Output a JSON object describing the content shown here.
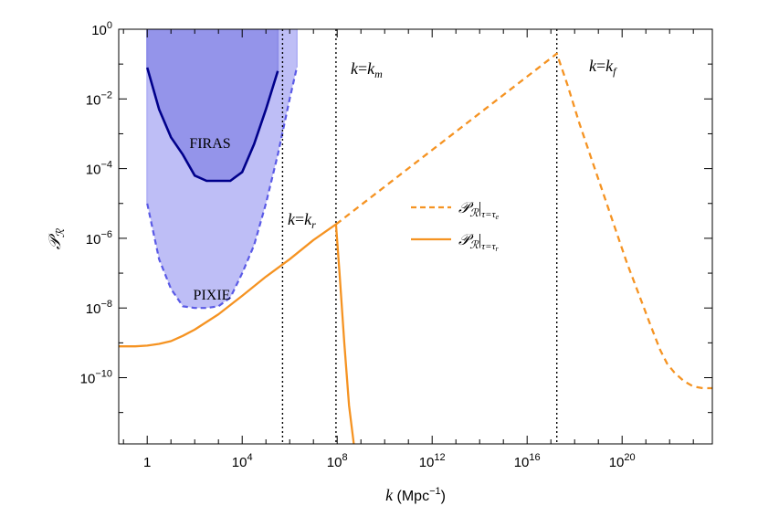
{
  "chart_data": {
    "type": "line",
    "xlabel": "k (Mpc⁻¹)",
    "ylabel": "𝒫ℛ",
    "xscale": "log",
    "yscale": "log",
    "xlim_log10": [
      -1.2,
      23.8
    ],
    "ylim_log10": [
      -11.9,
      0
    ],
    "grid": false,
    "legend_position": "center-right",
    "x_tick_labels": [
      {
        "log10": 0,
        "label": "1"
      },
      {
        "log10": 4,
        "label": "10^4"
      },
      {
        "log10": 8,
        "label": "10^8"
      },
      {
        "log10": 12,
        "label": "10^12"
      },
      {
        "log10": 16,
        "label": "10^16"
      },
      {
        "log10": 20,
        "label": "10^20"
      }
    ],
    "y_tick_labels": [
      {
        "log10": 0,
        "label": "10^0"
      },
      {
        "log10": -2,
        "label": "10^-2"
      },
      {
        "log10": -4,
        "label": "10^-4"
      },
      {
        "log10": -6,
        "label": "10^-6"
      },
      {
        "log10": -8,
        "label": "10^-8"
      },
      {
        "log10": -10,
        "label": "10^-10"
      }
    ],
    "vertical_lines": [
      {
        "log10_k": 5.7,
        "label": "k=k_r"
      },
      {
        "log10_k": 7.95,
        "label": "k=k_m"
      },
      {
        "log10_k": 17.25,
        "label": "k=k_f"
      }
    ],
    "regions": [
      {
        "name": "PIXIE",
        "color": "#b3b3f5",
        "edge_color": "#5a5ae6",
        "x_log10": [
          0,
          0.5,
          1,
          1.5,
          2,
          2.5,
          3,
          3.5,
          4,
          4.5,
          5,
          5.5,
          6,
          6.3
        ],
        "y_log10": [
          -5.0,
          -6.6,
          -7.45,
          -7.95,
          -8.0,
          -8.0,
          -7.95,
          -7.7,
          -7.0,
          -6.2,
          -5.0,
          -3.6,
          -2.0,
          -1.1
        ]
      },
      {
        "name": "FIRAS",
        "color": "#8d8de8",
        "edge_color": "#00008b",
        "x_log10": [
          0,
          0.5,
          1,
          1.5,
          2,
          2.5,
          3,
          3.5,
          4,
          4.5,
          5,
          5.5
        ],
        "y_log10": [
          -1.1,
          -2.3,
          -3.1,
          -3.6,
          -4.2,
          -4.35,
          -4.35,
          -4.35,
          -4.1,
          -3.3,
          -2.3,
          -1.2
        ]
      }
    ],
    "series": [
      {
        "name": "𝒫ℛ|τ=τₑ",
        "style": "dashed",
        "color": "#f59322",
        "x_log10": [
          7.95,
          17.25,
          17.7,
          18.2,
          18.7,
          19.2,
          19.7,
          20.2,
          20.7,
          21.2,
          21.6,
          21.9,
          22.2,
          22.6,
          23.0,
          23.4,
          23.8
        ],
        "y_log10": [
          -5.6,
          -0.7,
          -1.6,
          -2.7,
          -3.7,
          -4.7,
          -5.7,
          -6.7,
          -7.6,
          -8.5,
          -9.2,
          -9.6,
          -9.85,
          -10.1,
          -10.25,
          -10.3,
          -10.3
        ]
      },
      {
        "name": "𝒫ℛ|τ=τᵣ",
        "style": "solid",
        "color": "#f59322",
        "x_log10": [
          -1.2,
          -0.5,
          0,
          0.5,
          1,
          1.5,
          2,
          3,
          4,
          5,
          6,
          7,
          7.95,
          8.1,
          8.3,
          8.5,
          8.7
        ],
        "y_log10": [
          -9.1,
          -9.1,
          -9.08,
          -9.03,
          -8.95,
          -8.8,
          -8.62,
          -8.18,
          -7.65,
          -7.1,
          -6.6,
          -6.05,
          -5.6,
          -7.0,
          -9.0,
          -10.8,
          -11.9
        ]
      }
    ],
    "annotations": [
      "FIRAS",
      "PIXIE"
    ]
  }
}
